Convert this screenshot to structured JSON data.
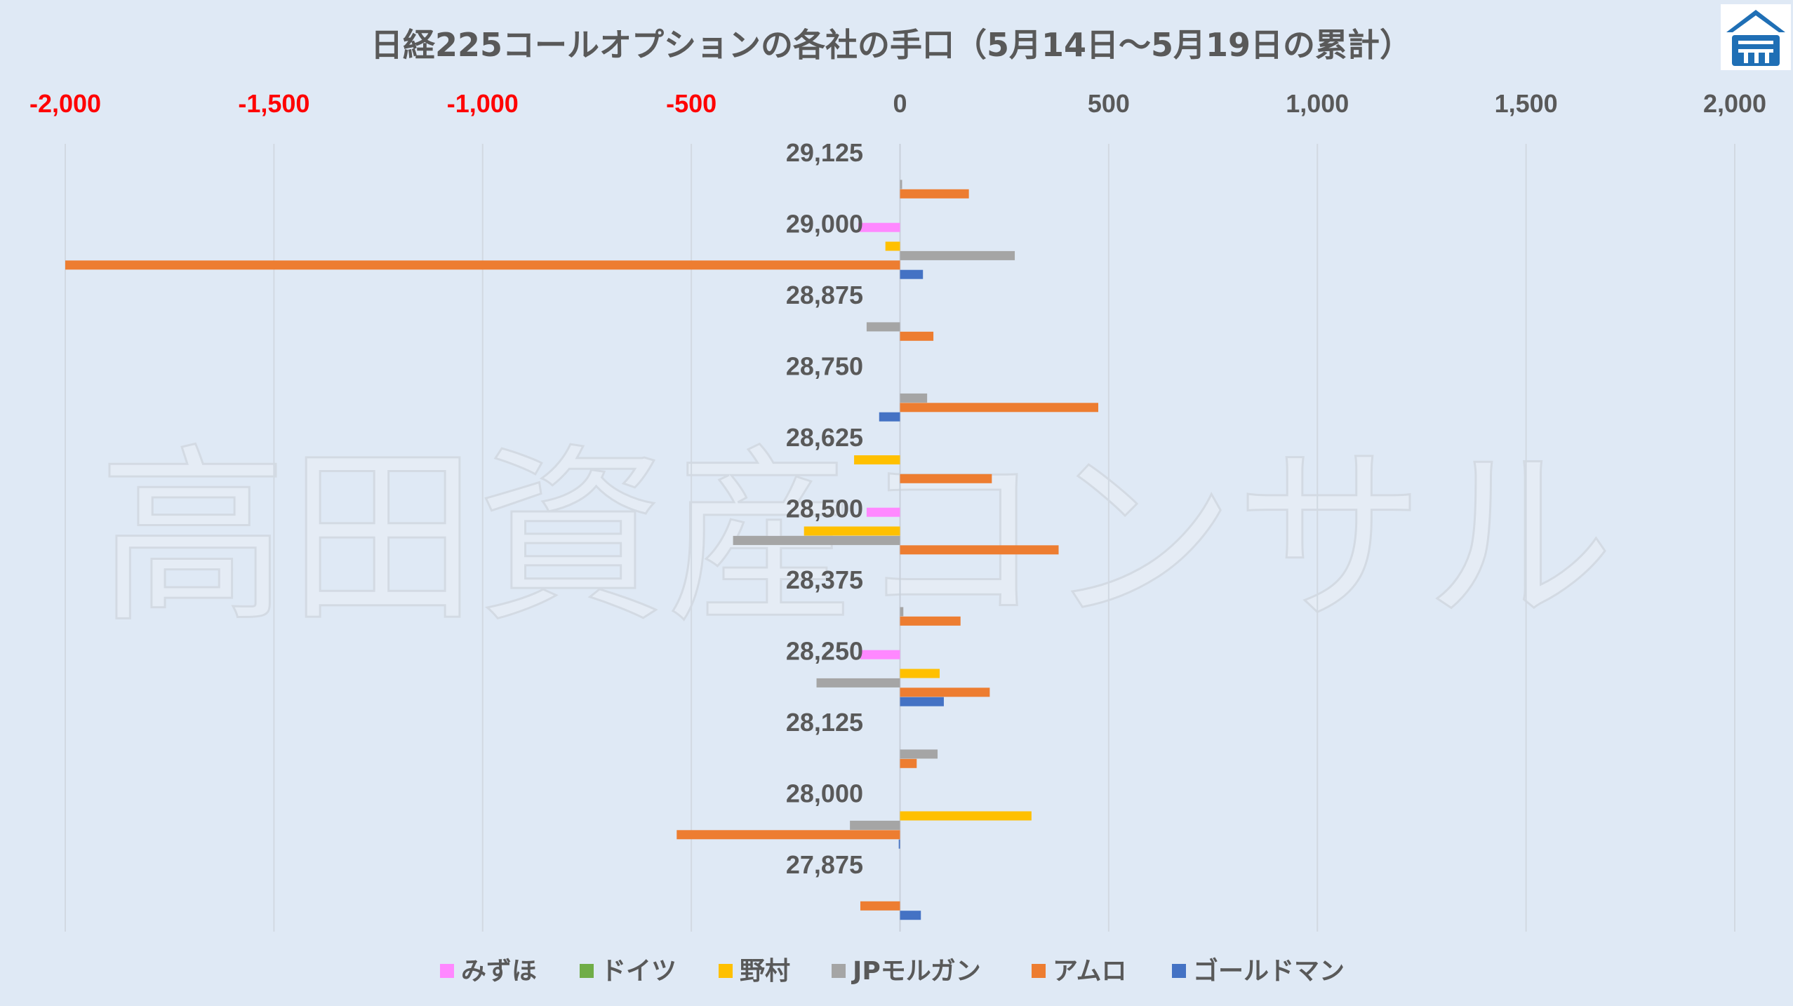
{
  "chart_data": {
    "type": "bar",
    "orientation": "horizontal",
    "title": "日経225コールオプションの各社の手口（5月14日～5月19日の累計）",
    "watermark": "高田資産コンサル",
    "logo": "takada-logo",
    "axis_position": "top",
    "xlim": [
      -2000,
      2000
    ],
    "xticks": [
      -2000,
      -1500,
      -1000,
      -500,
      0,
      500,
      1000,
      1500,
      2000
    ],
    "xtick_labels": [
      "-2,000",
      "-1,500",
      "-1,000",
      "-500",
      "0",
      "500",
      "1,000",
      "1,500",
      "2,000"
    ],
    "negative_tick_color": "#ff0000",
    "positive_tick_color": "#595959",
    "grid": true,
    "legend_position": "bottom",
    "categories": [
      "29,125",
      "29,000",
      "28,875",
      "28,750",
      "28,625",
      "28,500",
      "28,375",
      "28,250",
      "28,125",
      "28,000",
      "27,875"
    ],
    "series": [
      {
        "name": "みずほ",
        "color": "#ff88ff",
        "values": [
          0,
          -100,
          0,
          0,
          0,
          -80,
          0,
          -95,
          0,
          0,
          0
        ]
      },
      {
        "name": "ドイツ",
        "color": "#70ad47",
        "values": [
          0,
          0,
          0,
          0,
          0,
          0,
          0,
          0,
          0,
          0,
          0
        ]
      },
      {
        "name": "野村",
        "color": "#ffc000",
        "values": [
          0,
          -35,
          0,
          0,
          -110,
          -230,
          0,
          95,
          0,
          315,
          0
        ]
      },
      {
        "name": "JPモルガン",
        "color": "#a5a5a5",
        "values": [
          5,
          275,
          -80,
          65,
          0,
          -400,
          8,
          -200,
          90,
          -120,
          0
        ]
      },
      {
        "name": "アムロ",
        "color": "#ed7d31",
        "values": [
          165,
          -2000,
          80,
          475,
          220,
          380,
          145,
          215,
          40,
          -535,
          -95
        ]
      },
      {
        "name": "ゴールドマン",
        "color": "#4472c4",
        "values": [
          0,
          55,
          0,
          -50,
          0,
          0,
          0,
          105,
          0,
          -3,
          50
        ]
      }
    ]
  }
}
